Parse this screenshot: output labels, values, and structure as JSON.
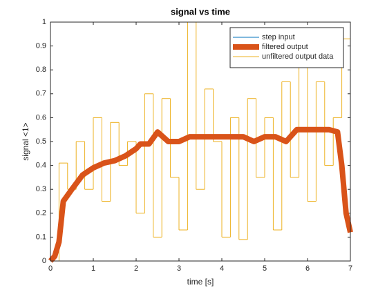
{
  "chart_data": {
    "type": "line",
    "title": "signal vs time",
    "xlabel": "time [s]",
    "ylabel": "signal <1>",
    "xlim": [
      0,
      7
    ],
    "ylim": [
      0,
      1
    ],
    "xticks": [
      0,
      1,
      2,
      3,
      4,
      5,
      6,
      7
    ],
    "yticks": [
      0,
      0.1,
      0.2,
      0.3,
      0.4,
      0.5,
      0.6,
      0.7,
      0.8,
      0.9,
      1
    ],
    "grid": false,
    "legend": "northeast",
    "series": [
      {
        "name": "step input",
        "color": "#0072bd",
        "linewidth": 1,
        "x": [
          0,
          7
        ],
        "values": [
          1,
          1
        ]
      },
      {
        "name": "filtered output",
        "color": "#d95319",
        "linewidth": 8,
        "x": [
          0,
          0.1,
          0.2,
          0.3,
          0.5,
          0.75,
          1,
          1.25,
          1.5,
          1.75,
          2,
          2.1,
          2.3,
          2.5,
          2.75,
          3,
          3.25,
          3.5,
          4,
          4.5,
          4.75,
          5,
          5.25,
          5.5,
          5.75,
          6,
          6.5,
          6.7,
          6.8,
          6.9,
          7
        ],
        "values": [
          0,
          0.02,
          0.08,
          0.25,
          0.3,
          0.36,
          0.39,
          0.41,
          0.42,
          0.44,
          0.47,
          0.49,
          0.49,
          0.54,
          0.5,
          0.5,
          0.52,
          0.52,
          0.52,
          0.52,
          0.5,
          0.52,
          0.52,
          0.5,
          0.55,
          0.55,
          0.55,
          0.54,
          0.4,
          0.2,
          0.12
        ]
      },
      {
        "name": "unfiltered output data",
        "color": "#edb120",
        "linewidth": 1,
        "drawstyle": "steps",
        "x": [
          0,
          0.2,
          0.4,
          0.6,
          0.8,
          1.0,
          1.2,
          1.4,
          1.6,
          1.8,
          2.0,
          2.2,
          2.4,
          2.6,
          2.8,
          3.0,
          3.2,
          3.4,
          3.6,
          3.8,
          4.0,
          4.2,
          4.4,
          4.6,
          4.8,
          5.0,
          5.2,
          5.4,
          5.6,
          5.8,
          6.0,
          6.2,
          6.4,
          6.6,
          6.8,
          7.0
        ],
        "values": [
          0,
          0.41,
          0.3,
          0.5,
          0.3,
          0.6,
          0.25,
          0.58,
          0.4,
          0.5,
          0.2,
          0.7,
          0.1,
          0.68,
          0.35,
          0.13,
          1,
          0.3,
          0.72,
          0.5,
          0.1,
          0.6,
          0.09,
          0.68,
          0.35,
          0.6,
          0.13,
          0.75,
          0.35,
          0.85,
          0.25,
          0.75,
          0.4,
          0.6,
          0.93,
          0.15
        ]
      }
    ]
  }
}
